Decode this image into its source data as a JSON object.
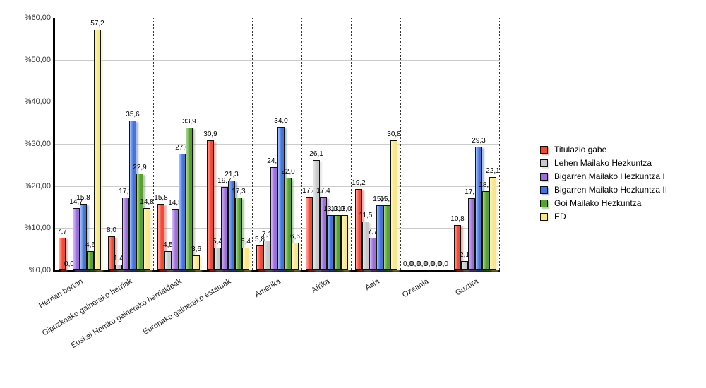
{
  "chart_data": {
    "type": "bar",
    "title": "",
    "xlabel": "",
    "ylabel": "",
    "ylim": [
      0,
      60
    ],
    "grid": true,
    "legend_position": "right",
    "value_decimal_separator": ",",
    "yticks": [
      {
        "value": 0,
        "label": "%0,00"
      },
      {
        "value": 10,
        "label": "%10,00"
      },
      {
        "value": 20,
        "label": "%20,00"
      },
      {
        "value": 30,
        "label": "%30,00"
      },
      {
        "value": 40,
        "label": "%40,00"
      },
      {
        "value": 50,
        "label": "%50,00"
      },
      {
        "value": 60,
        "label": "%60,00"
      }
    ],
    "categories": [
      "Herrian bertan",
      "Gipuzkoako gainerako herriak",
      "Euskal Herriko gainerako herrialdeak",
      "Europako gainerako estatuak",
      "Amerika",
      "Afrika",
      "Asia",
      "Ozeania",
      "Guztira"
    ],
    "series": [
      {
        "name": "Titulazio gabe",
        "color": "#ed4a38",
        "values": [
          7.7,
          8.0,
          15.8,
          30.9,
          5.8,
          17.4,
          19.2,
          0.0,
          10.8
        ]
      },
      {
        "name": "Lehen Mailako Hezkuntza",
        "color": "#c9c9c9",
        "values": [
          0.0,
          1.4,
          4.5,
          5.4,
          7.1,
          26.1,
          11.5,
          0.0,
          2.1
        ]
      },
      {
        "name": "Bigarren Mailako Hezkuntza I",
        "color": "#9c6fd6",
        "values": [
          14.7,
          17.2,
          14.5,
          19.7,
          24.5,
          17.4,
          7.7,
          0.0,
          17.1
        ]
      },
      {
        "name": "Bigarren Mailako Hezkuntza II",
        "color": "#4673d8",
        "values": [
          15.8,
          35.6,
          27.6,
          21.3,
          34.0,
          13.0,
          15.4,
          0.0,
          29.3
        ]
      },
      {
        "name": "Goi Mailako Hezkuntza",
        "color": "#58a033",
        "values": [
          4.6,
          22.9,
          33.9,
          17.3,
          22.0,
          13.0,
          15.4,
          0.0,
          18.7
        ]
      },
      {
        "name": "ED",
        "color": "#f6e78d",
        "values": [
          57.2,
          14.8,
          3.6,
          5.4,
          6.6,
          13.0,
          30.8,
          0.0,
          22.1
        ]
      }
    ]
  },
  "colors": {
    "axis": "#000000",
    "gridline": "#cccccc",
    "separator": "#333333",
    "bar_border": "#111111",
    "background": "#ffffff"
  }
}
